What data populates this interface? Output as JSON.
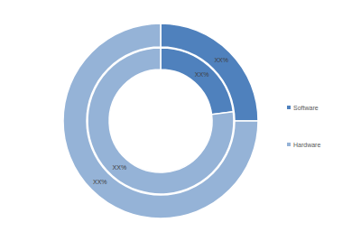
{
  "chart_data": {
    "type": "donut",
    "categories": [
      "Software",
      "Hardware"
    ],
    "colors": [
      "#4f81bd",
      "#95b3d7"
    ],
    "series": [
      {
        "values": [
          25,
          75
        ],
        "value_labels": [
          "XX%",
          "XX%"
        ]
      },
      {
        "values": [
          23,
          77
        ],
        "value_labels": [
          "XX%",
          "XX%"
        ]
      }
    ],
    "data_labels": true,
    "legend": "right"
  }
}
